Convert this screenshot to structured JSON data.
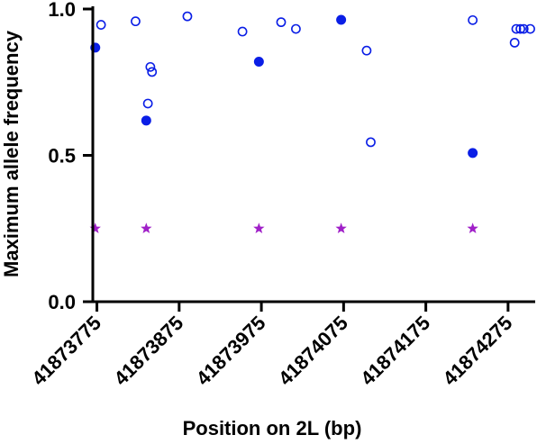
{
  "chart_data": {
    "type": "scatter",
    "title": "",
    "xlabel": "Position on 2L (bp)",
    "ylabel": "Maximum allele frequency",
    "xlim": [
      41873770,
      41874308
    ],
    "ylim": [
      0,
      1.0
    ],
    "x_ticks": [
      41873775,
      41873875,
      41873975,
      41874075,
      41874175,
      41874275
    ],
    "x_tick_labels": [
      "41873775",
      "41873875",
      "41873975",
      "41874075",
      "41874175",
      "41874275"
    ],
    "y_ticks": [
      0,
      0.5,
      1.0
    ],
    "y_tick_labels": [
      "0.0",
      "0.5",
      "1.0"
    ],
    "grid": false,
    "legend": "none",
    "colors": {
      "points": "#0a1ee6",
      "stars": "#a020c8"
    },
    "series": [
      {
        "marker": "open-circle",
        "points": [
          {
            "x": 41873780,
            "y": 0.946
          },
          {
            "x": 41873822,
            "y": 0.958
          },
          {
            "x": 41873837,
            "y": 0.677
          },
          {
            "x": 41873840,
            "y": 0.802
          },
          {
            "x": 41873842,
            "y": 0.785
          },
          {
            "x": 41873885,
            "y": 0.975
          },
          {
            "x": 41873952,
            "y": 0.923
          },
          {
            "x": 41873999,
            "y": 0.955
          },
          {
            "x": 41874017,
            "y": 0.932
          },
          {
            "x": 41874103,
            "y": 0.858
          },
          {
            "x": 41874108,
            "y": 0.545
          },
          {
            "x": 41874232,
            "y": 0.962
          },
          {
            "x": 41874283,
            "y": 0.885
          },
          {
            "x": 41874285,
            "y": 0.932
          },
          {
            "x": 41874290,
            "y": 0.932
          },
          {
            "x": 41874294,
            "y": 0.932
          },
          {
            "x": 41874302,
            "y": 0.932
          }
        ]
      },
      {
        "marker": "filled-circle",
        "points": [
          {
            "x": 41873773,
            "y": 0.868
          },
          {
            "x": 41873835,
            "y": 0.619
          },
          {
            "x": 41873972,
            "y": 0.82
          },
          {
            "x": 41874072,
            "y": 0.963
          },
          {
            "x": 41874232,
            "y": 0.508
          }
        ]
      },
      {
        "marker": "star",
        "points": [
          {
            "x": 41873773,
            "y": 0.25
          },
          {
            "x": 41873835,
            "y": 0.25
          },
          {
            "x": 41873972,
            "y": 0.25
          },
          {
            "x": 41874072,
            "y": 0.25
          },
          {
            "x": 41874232,
            "y": 0.25
          }
        ]
      }
    ]
  }
}
